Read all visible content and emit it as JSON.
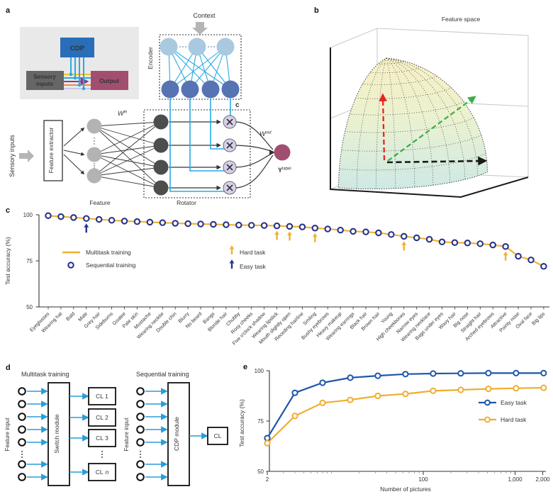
{
  "figure": {
    "panel_labels": {
      "a": "a",
      "b": "b",
      "c": "c",
      "d": "d",
      "e": "e"
    }
  },
  "panel_a": {
    "inset": {
      "cdp": "CDP",
      "sensory_lines": [
        "Sensory",
        "inputs"
      ],
      "output": "Output"
    },
    "context": "Context",
    "encoder": "Encoder",
    "c_label": "c",
    "sensory_inputs": "Sensory inputs",
    "feature_extractor": "Feature extractor",
    "feature": "Feature",
    "rotator": "Rotator",
    "w_in": {
      "base": "W",
      "sup": "in"
    },
    "w_out": {
      "base": "W",
      "sup": "out"
    },
    "y_label": {
      "base": "Y",
      "sup": "label"
    }
  },
  "panel_b": {
    "title": "Feature space"
  },
  "panel_d": {
    "multitask_title": "Multitask training",
    "sequential_title": "Sequential training",
    "feature_input": "Feature input",
    "switch_module": "Switch module",
    "cdp_module": "CDP module",
    "cl_boxes": [
      "CL 1",
      "CL 2",
      "CL 3"
    ],
    "cl_n": {
      "base": "CL",
      "italic": "n"
    },
    "cl": "CL"
  },
  "chart_data": [
    {
      "id": "c",
      "type": "line",
      "ylabel": "Test accuracy (%)",
      "ylim": [
        50,
        100
      ],
      "yticks": [
        100,
        75,
        50
      ],
      "grid": false,
      "legend_position": "inside-upper-left",
      "categories": [
        "Eyeglasses",
        "Wearing hat",
        "Bald",
        "Male",
        "Grey hair",
        "Sideburns",
        "Goatee",
        "Pale skin",
        "Mustache",
        "Wearing necktie",
        "Double chin",
        "Blurry",
        "No beard",
        "Bangs",
        "Blonde hair",
        "Chubby",
        "Rosy cheeks",
        "Five o'clock shadow",
        "Wearing lipstick",
        "Mouth slightly open",
        "Receding hairline",
        "Smiling",
        "Bushy eyebrows",
        "Heavy makeup",
        "Wearing earrings",
        "Black hair",
        "Brown hair",
        "Young",
        "High cheekbones",
        "Narrow eyes",
        "Wearing necklace",
        "Bags under eyes",
        "Wavy hair",
        "Big nose",
        "Straight hair",
        "Arched eyebrows",
        "Attractive",
        "Pointy nose",
        "Oval face",
        "Big lips"
      ],
      "series": [
        {
          "name": "Multitask training",
          "style": "line",
          "color": "#f0b232",
          "values": [
            99.5,
            99.0,
            98.5,
            98.0,
            97.5,
            97.0,
            96.6,
            96.3,
            96.0,
            95.7,
            95.4,
            95.2,
            95.0,
            94.8,
            94.6,
            94.4,
            94.3,
            94.2,
            94.0,
            93.7,
            93.4,
            92.8,
            92.3,
            91.7,
            91.0,
            90.7,
            90.2,
            89.3,
            88.3,
            87.5,
            86.7,
            85.3,
            84.9,
            84.7,
            84.3,
            83.6,
            82.8,
            77.5,
            75.5,
            72.0
          ]
        },
        {
          "name": "Sequential training",
          "style": "open-circle",
          "color": "#28348a",
          "values": [
            99.5,
            99.0,
            98.5,
            98.0,
            97.5,
            97.0,
            96.6,
            96.3,
            96.0,
            95.7,
            95.4,
            95.2,
            95.0,
            94.8,
            94.6,
            94.4,
            94.3,
            94.2,
            94.0,
            93.7,
            93.4,
            92.8,
            92.3,
            91.7,
            91.0,
            90.7,
            90.2,
            89.3,
            88.3,
            87.5,
            86.7,
            85.3,
            84.9,
            84.7,
            84.3,
            83.6,
            82.8,
            77.5,
            75.5,
            72.0
          ]
        }
      ],
      "annotations": {
        "hard_task": {
          "label": "Hard task",
          "color": "#f0b232",
          "indices": [
            18,
            19,
            21,
            28,
            36
          ],
          "categories": [
            "Wearing lipstick",
            "Mouth slightly open",
            "Smiling",
            "High cheekbones",
            "Attractive"
          ]
        },
        "easy_task": {
          "label": "Easy task",
          "color": "#28348a",
          "indices": [
            3
          ],
          "categories": [
            "Male"
          ]
        }
      }
    },
    {
      "id": "e",
      "type": "line",
      "xlabel": "Number of pictures",
      "ylabel": "Test accuracy (%)",
      "xscale": "log",
      "xlim": [
        2,
        2048
      ],
      "ylim": [
        50,
        100
      ],
      "yticks": [
        100,
        75,
        50
      ],
      "xticks": [
        {
          "v": 2,
          "label": "2"
        },
        {
          "v": 100,
          "label": "100"
        },
        {
          "v": 1000,
          "label": "1,000"
        },
        {
          "v": 2000,
          "label": "2,000"
        }
      ],
      "x": [
        2,
        4,
        8,
        16,
        32,
        64,
        128,
        256,
        512,
        1024,
        2048
      ],
      "legend_position": "inside-right",
      "series": [
        {
          "name": "Easy task",
          "color": "#1f57a8",
          "values": [
            66.5,
            89.0,
            94.0,
            96.5,
            97.5,
            98.3,
            98.6,
            98.7,
            98.8,
            98.8,
            98.8
          ]
        },
        {
          "name": "Hard task",
          "color": "#f0ad31",
          "values": [
            64.0,
            77.5,
            84.0,
            85.5,
            87.5,
            88.5,
            90.0,
            90.5,
            91.0,
            91.3,
            91.5
          ]
        }
      ]
    }
  ],
  "colors": {
    "multitask_line": "#f0b232",
    "sequential_marker": "#28348a",
    "easy_series": "#1f57a8",
    "hard_series": "#f0ad31",
    "cdp_box": "#2a6db8",
    "output_box": "#a24e71",
    "sensory_box": "#666666",
    "cyan": "#29abe2",
    "encoder_top_node": "#a9c9e0",
    "encoder_bottom_node": "#5673b4",
    "feature_node": "#b3b3b3",
    "hidden_node": "#4d4d4d",
    "rotator_node": "#d8d0ea",
    "output_node": "#a24e71",
    "inset_line_yellow": "#f2c12e",
    "inset_line_purple": "#7d3f98",
    "inset_line_orange": "#f08a3c",
    "inset_line_lavender": "#cdc6e6",
    "arrow_red": "#e8231f",
    "arrow_green": "#3fae49",
    "arrow_black": "#1a1a1a",
    "diagram_arrow_blue": "#2b9cd8"
  }
}
